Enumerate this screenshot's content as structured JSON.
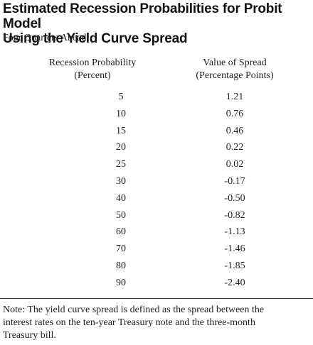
{
  "title": {
    "line1": "Estimated Recession Probabilities for Probit Model",
    "line2": "Using the Yield Curve Spread"
  },
  "subtitle": "Four Quarters Ahead",
  "table": {
    "headers": {
      "probability": {
        "line1": "Recession Probability",
        "line2": "(Percent)"
      },
      "spread": {
        "line1": "Value of Spread",
        "line2": "(Percentage Points)"
      }
    },
    "rows": [
      {
        "probability": "5",
        "spread": "1.21"
      },
      {
        "probability": "10",
        "spread": "0.76"
      },
      {
        "probability": "15",
        "spread": "0.46"
      },
      {
        "probability": "20",
        "spread": "0.22"
      },
      {
        "probability": "25",
        "spread": "0.02"
      },
      {
        "probability": "30",
        "spread": "-0.17"
      },
      {
        "probability": "40",
        "spread": "-0.50"
      },
      {
        "probability": "50",
        "spread": "-0.82"
      },
      {
        "probability": "60",
        "spread": "-1.13"
      },
      {
        "probability": "70",
        "spread": "-1.46"
      },
      {
        "probability": "80",
        "spread": "-1.85"
      },
      {
        "probability": "90",
        "spread": "-2.40"
      }
    ]
  },
  "note": {
    "line1": "Note:  The yield curve spread is defined as the spread between the",
    "line2": "interest rates on the ten-year Treasury note and the three-month",
    "line3": "Treasury bill."
  }
}
